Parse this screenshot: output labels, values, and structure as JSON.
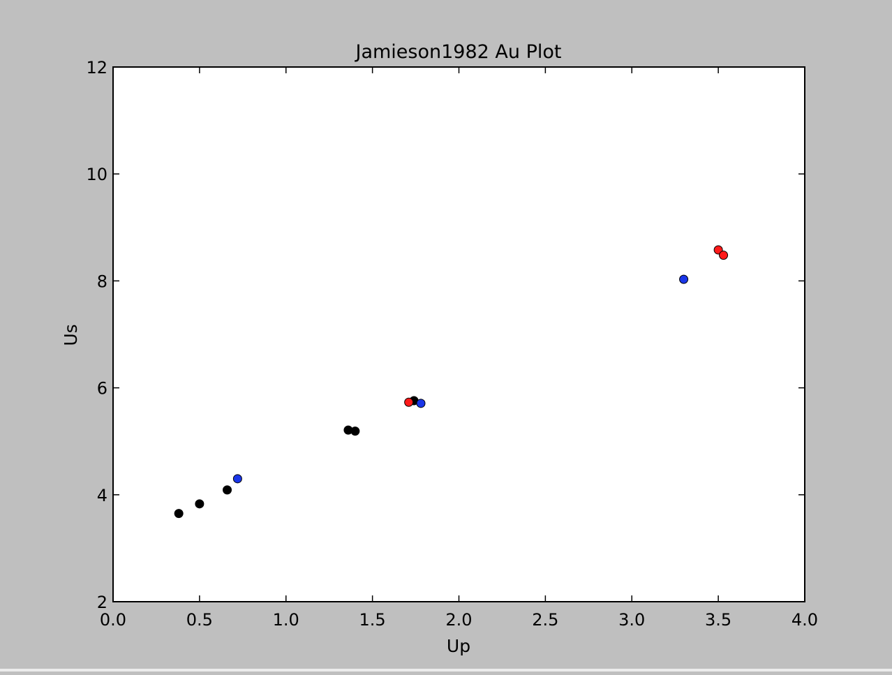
{
  "chart_data": {
    "type": "scatter",
    "title": "Jamieson1982 Au Plot",
    "xlabel": "Up",
    "ylabel": "Us",
    "xlim": [
      0.0,
      4.0
    ],
    "ylim": [
      2,
      12
    ],
    "xticks": [
      0.0,
      0.5,
      1.0,
      1.5,
      2.0,
      2.5,
      3.0,
      3.5,
      4.0
    ],
    "xtick_labels": [
      "0.0",
      "0.5",
      "1.0",
      "1.5",
      "2.0",
      "2.5",
      "3.0",
      "3.5",
      "4.0"
    ],
    "yticks": [
      2,
      4,
      6,
      8,
      10,
      12
    ],
    "ytick_labels": [
      "2",
      "4",
      "6",
      "8",
      "10",
      "12"
    ],
    "grid": false,
    "legend": "none",
    "series": [
      {
        "color": "#000000",
        "points": [
          {
            "x": 0.38,
            "y": 3.65
          },
          {
            "x": 0.5,
            "y": 3.83
          },
          {
            "x": 0.66,
            "y": 4.09
          },
          {
            "x": 1.36,
            "y": 5.21
          },
          {
            "x": 1.4,
            "y": 5.19
          },
          {
            "x": 1.74,
            "y": 5.76
          }
        ]
      },
      {
        "color": "#ff1a1a",
        "points": [
          {
            "x": 1.71,
            "y": 5.73
          },
          {
            "x": 3.5,
            "y": 8.58
          },
          {
            "x": 3.53,
            "y": 8.48
          }
        ]
      },
      {
        "color": "#1a36e8",
        "points": [
          {
            "x": 0.72,
            "y": 4.3
          },
          {
            "x": 1.78,
            "y": 5.71
          },
          {
            "x": 3.3,
            "y": 8.03
          }
        ]
      }
    ]
  }
}
